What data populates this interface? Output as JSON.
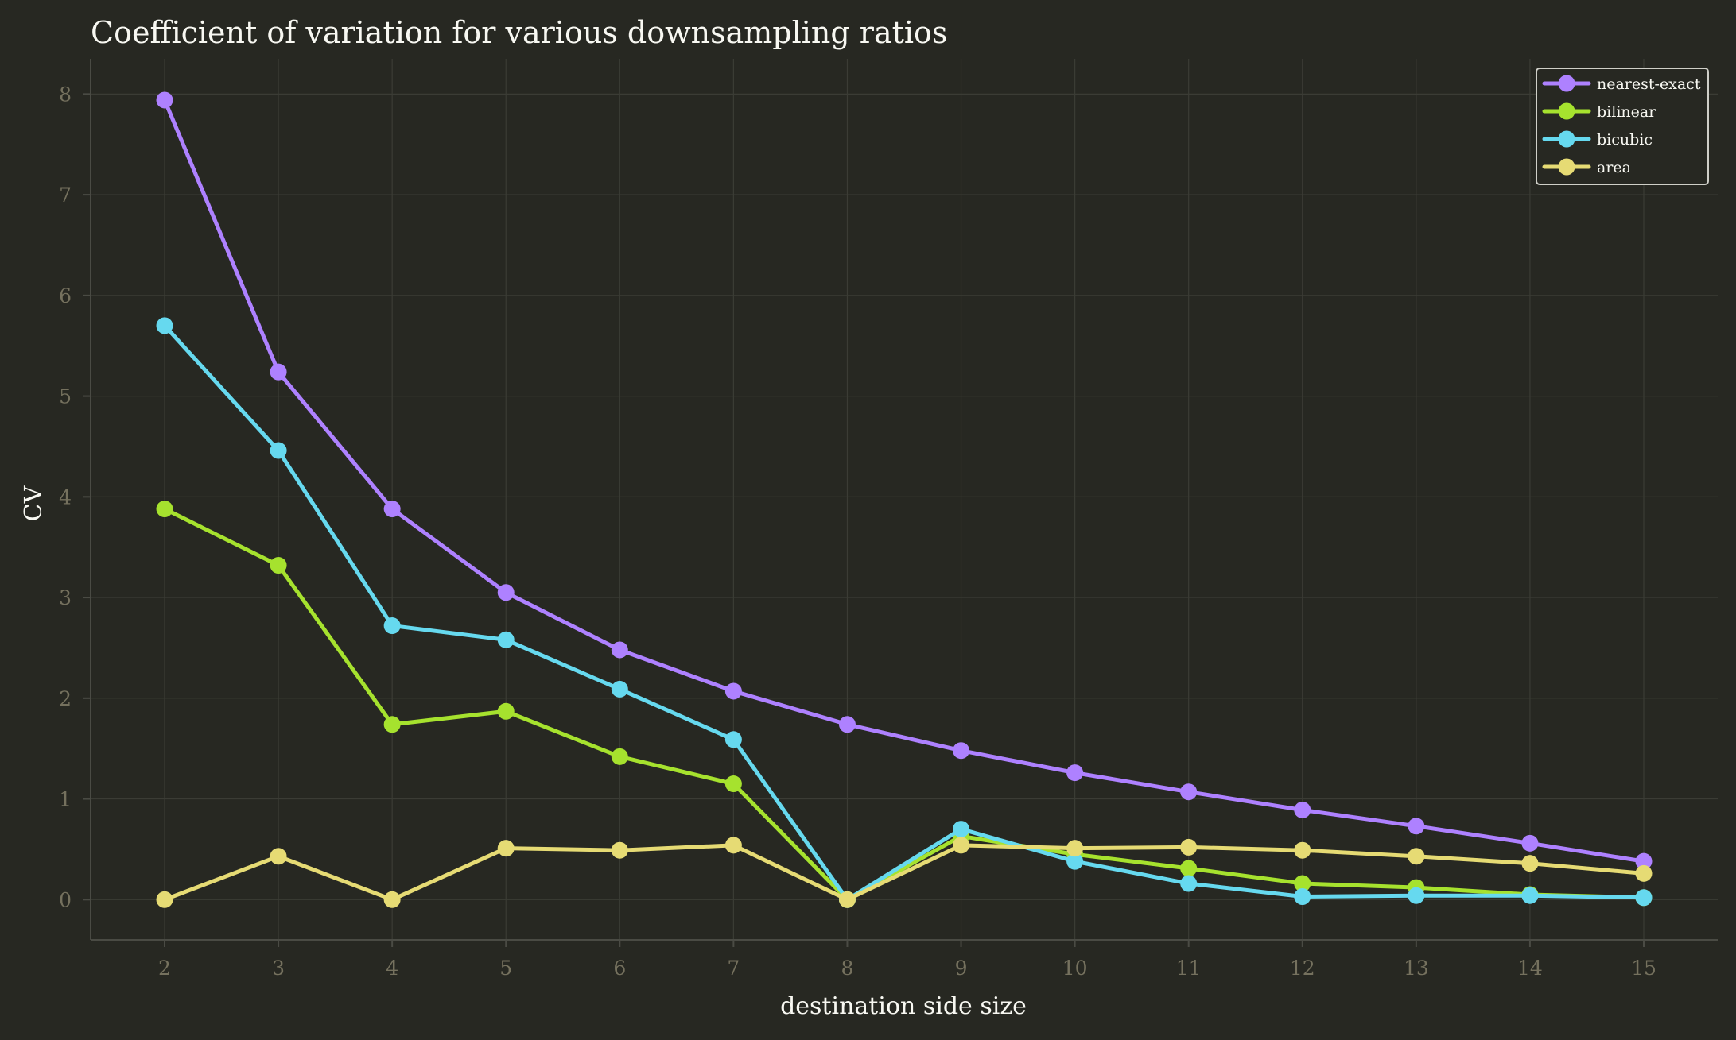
{
  "chart_data": {
    "type": "line",
    "title": "Coefficient of variation for various downsampling ratios",
    "xlabel": "destination side size",
    "ylabel": "CV",
    "x": [
      2,
      3,
      4,
      5,
      6,
      7,
      8,
      9,
      10,
      11,
      12,
      13,
      14,
      15
    ],
    "xlim": [
      1.35,
      15.65
    ],
    "ylim": [
      -0.4,
      8.35
    ],
    "xticks": [
      2,
      3,
      4,
      5,
      6,
      7,
      8,
      9,
      10,
      11,
      12,
      13,
      14,
      15
    ],
    "yticks": [
      0,
      1,
      2,
      3,
      4,
      5,
      6,
      7,
      8
    ],
    "grid": true,
    "legend_position": "top-right",
    "series": [
      {
        "name": "nearest-exact",
        "color": "#ae81ff",
        "values": [
          7.94,
          5.24,
          3.88,
          3.05,
          2.48,
          2.07,
          1.74,
          1.48,
          1.26,
          1.07,
          0.89,
          0.73,
          0.56,
          0.38
        ]
      },
      {
        "name": "bilinear",
        "color": "#a6e22e",
        "values": [
          3.88,
          3.32,
          1.74,
          1.87,
          1.42,
          1.15,
          0.0,
          0.63,
          0.45,
          0.31,
          0.16,
          0.12,
          0.05,
          0.02
        ]
      },
      {
        "name": "bicubic",
        "color": "#66d9ef",
        "values": [
          5.7,
          4.46,
          2.72,
          2.58,
          2.09,
          1.59,
          0.0,
          0.7,
          0.38,
          0.16,
          0.03,
          0.04,
          0.04,
          0.02
        ]
      },
      {
        "name": "area",
        "color": "#e6db74",
        "values": [
          0.0,
          0.43,
          0.0,
          0.51,
          0.49,
          0.54,
          0.0,
          0.54,
          0.51,
          0.52,
          0.49,
          0.43,
          0.36,
          0.26
        ]
      }
    ]
  },
  "colors": {
    "background": "#272822",
    "grid": "#3b3c35",
    "axis": "#4a4b44",
    "tick_text": "#75715e",
    "text": "#f8f8f2",
    "legend_border": "#cfcfc8",
    "legend_background": "#272822"
  }
}
